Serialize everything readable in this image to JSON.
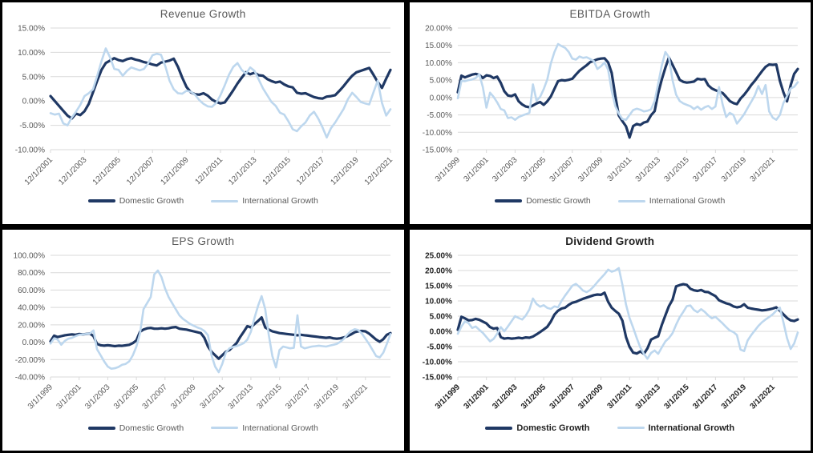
{
  "page": {
    "background_color": "#000000",
    "panel_color": "#ffffff",
    "gridline_color": "#d9d9d9",
    "axis_label_color": "#595959",
    "emphasis_label_color": "#1f1f1f",
    "domestic_color": "#1f3864",
    "international_color": "#bdd7ee"
  },
  "chart_data": [
    {
      "type": "line",
      "key": "revenue-growth",
      "title": "Revenue Growth",
      "emphasis": false,
      "grid": true,
      "legend_position": "bottom",
      "ylabel": "",
      "xlabel": "",
      "ylim": [
        -10,
        15
      ],
      "y_tick_values": [
        15,
        10,
        5,
        0,
        -5,
        -10
      ],
      "y_tick_format": "0.00%",
      "x_tick_labels": [
        "12/1/2001",
        "12/1/2003",
        "12/1/2005",
        "12/1/2007",
        "12/1/2009",
        "12/1/2011",
        "12/1/2013",
        "12/1/2015",
        "12/1/2017",
        "12/1/2019",
        "12/1/2021"
      ],
      "points_per_tick": 8,
      "series": [
        {
          "name": "Domestic Growth",
          "color": "#1f3864",
          "values": [
            1.0,
            0.0,
            -1.0,
            -2.0,
            -3.0,
            -3.6,
            -2.6,
            -2.9,
            -2.1,
            -0.6,
            1.8,
            4.2,
            6.4,
            7.8,
            8.3,
            8.8,
            8.4,
            8.2,
            8.6,
            8.8,
            8.5,
            8.3,
            8.0,
            7.8,
            7.5,
            7.3,
            7.9,
            8.1,
            8.3,
            8.7,
            7.0,
            4.8,
            2.9,
            1.8,
            1.4,
            1.3,
            1.6,
            1.1,
            0.3,
            -0.2,
            -0.5,
            -0.3,
            0.9,
            2.2,
            3.6,
            4.8,
            5.9,
            5.5,
            5.8,
            5.3,
            5.2,
            4.5,
            4.1,
            3.8,
            4.0,
            3.4,
            3.0,
            2.8,
            1.7,
            1.5,
            1.6,
            1.2,
            0.8,
            0.6,
            0.5,
            0.9,
            1.0,
            1.2,
            2.1,
            3.1,
            4.2,
            5.2,
            5.9,
            6.2,
            6.5,
            6.8,
            5.4,
            3.9,
            2.7,
            4.6,
            6.4
          ]
        },
        {
          "name": "International Growth",
          "color": "#bdd7ee",
          "values": [
            -2.5,
            -2.8,
            -2.6,
            -4.6,
            -5.0,
            -3.4,
            -2.2,
            -0.8,
            1.0,
            1.6,
            2.4,
            5.2,
            8.2,
            10.8,
            9.0,
            6.6,
            6.4,
            5.2,
            6.2,
            6.9,
            6.6,
            6.3,
            6.6,
            7.8,
            9.4,
            9.7,
            9.5,
            7.2,
            4.2,
            2.4,
            1.6,
            1.5,
            2.1,
            1.9,
            1.3,
            0.2,
            -0.6,
            -1.1,
            -1.2,
            -0.4,
            1.2,
            3.2,
            5.4,
            7.0,
            7.8,
            6.4,
            5.6,
            6.9,
            6.2,
            4.4,
            2.6,
            1.2,
            -0.2,
            -1.0,
            -2.4,
            -2.8,
            -4.2,
            -5.8,
            -6.2,
            -5.2,
            -4.4,
            -3.0,
            -2.2,
            -3.6,
            -5.4,
            -7.5,
            -5.6,
            -4.4,
            -3.0,
            -1.6,
            0.4,
            1.7,
            0.8,
            -0.2,
            -0.5,
            -0.7,
            1.8,
            4.2,
            -0.4,
            -3.0,
            -1.7
          ]
        }
      ]
    },
    {
      "type": "line",
      "key": "ebitda-growth",
      "title": "EBITDA Growth",
      "emphasis": false,
      "grid": true,
      "legend_position": "bottom",
      "ylabel": "",
      "xlabel": "",
      "ylim": [
        -15,
        20
      ],
      "y_tick_values": [
        20,
        15,
        10,
        5,
        0,
        -5,
        -10,
        -15
      ],
      "y_tick_format": "0.00%",
      "x_tick_labels": [
        "3/1/1999",
        "3/1/2001",
        "3/1/2003",
        "3/1/2005",
        "3/1/2007",
        "3/1/2009",
        "3/1/2011",
        "3/1/2013",
        "3/1/2015",
        "3/1/2017",
        "3/1/2019",
        "3/1/2021"
      ],
      "points_per_tick": 8,
      "series": [
        {
          "name": "Domestic Growth",
          "color": "#1f3864",
          "values": [
            1.5,
            6.3,
            5.8,
            6.2,
            6.6,
            6.8,
            6.5,
            5.6,
            6.4,
            6.2,
            5.6,
            6.0,
            4.2,
            1.8,
            0.6,
            0.4,
            0.9,
            -1.1,
            -2.0,
            -2.6,
            -2.8,
            -2.3,
            -1.7,
            -1.3,
            -2.1,
            -1.1,
            0.3,
            2.5,
            4.7,
            5.0,
            4.9,
            5.1,
            5.4,
            6.6,
            7.7,
            8.5,
            9.3,
            10.2,
            10.6,
            11.0,
            11.2,
            11.3,
            10.1,
            7.1,
            0.5,
            -5.2,
            -6.8,
            -8.3,
            -11.5,
            -8.2,
            -7.6,
            -7.9,
            -7.2,
            -6.9,
            -5.1,
            -3.9,
            1.2,
            5.2,
            8.6,
            11.5,
            9.4,
            7.3,
            5.1,
            4.5,
            4.3,
            4.4,
            4.6,
            5.4,
            5.2,
            5.3,
            3.5,
            2.6,
            2.1,
            1.7,
            1.3,
            0.2,
            -1.0,
            -1.6,
            -1.9,
            -0.3,
            0.8,
            2.1,
            3.6,
            4.8,
            6.2,
            7.6,
            8.8,
            9.5,
            9.4,
            9.5,
            4.8,
            1.5,
            -1.1,
            3.5,
            6.8,
            8.2
          ]
        },
        {
          "name": "International Growth",
          "color": "#bdd7ee",
          "values": [
            -0.2,
            4.8,
            4.7,
            5.0,
            5.2,
            5.6,
            6.7,
            3.0,
            -2.9,
            1.4,
            0.2,
            -1.4,
            -3.3,
            -3.7,
            -5.9,
            -5.7,
            -6.4,
            -5.6,
            -5.2,
            -4.8,
            -4.4,
            3.8,
            -0.9,
            0.2,
            2.4,
            5.2,
            9.8,
            13.1,
            15.4,
            14.8,
            14.3,
            13.1,
            11.2,
            10.9,
            11.8,
            11.4,
            11.6,
            11.1,
            10.5,
            8.2,
            9.0,
            10.1,
            8.0,
            2.0,
            -2.5,
            -4.6,
            -6.2,
            -6.4,
            -5.0,
            -3.6,
            -3.2,
            -3.5,
            -4.0,
            -3.8,
            -3.4,
            -1.0,
            4.0,
            9.2,
            13.1,
            11.6,
            5.0,
            0.8,
            -1.0,
            -1.7,
            -2.1,
            -2.5,
            -3.3,
            -2.6,
            -3.5,
            -2.8,
            -2.4,
            -3.3,
            -2.6,
            3.0,
            -2.0,
            -5.6,
            -4.4,
            -5.0,
            -7.5,
            -6.2,
            -4.8,
            -3.0,
            -1.2,
            0.6,
            3.3,
            1.0,
            3.6,
            -4.0,
            -5.8,
            -6.4,
            -5.0,
            -1.6,
            0.4,
            2.6,
            3.1,
            4.4
          ]
        }
      ]
    },
    {
      "type": "line",
      "key": "eps-growth",
      "title": "EPS Growth",
      "emphasis": false,
      "grid": true,
      "legend_position": "bottom",
      "ylabel": "",
      "xlabel": "",
      "ylim": [
        -40,
        100
      ],
      "y_tick_values": [
        100,
        80,
        60,
        40,
        20,
        0,
        -20,
        -40
      ],
      "y_tick_format": "0.00%",
      "x_tick_labels": [
        "3/1/1999",
        "3/1/2001",
        "3/1/2003",
        "3/1/2005",
        "3/1/2007",
        "3/1/2009",
        "3/1/2011",
        "3/1/2013",
        "3/1/2015",
        "3/1/2017",
        "3/1/2019",
        "3/1/2021"
      ],
      "points_per_tick": 8,
      "series": [
        {
          "name": "Domestic Growth",
          "color": "#1f3864",
          "values": [
            1.0,
            7.5,
            6.0,
            7.0,
            8.0,
            8.5,
            9.0,
            8.5,
            9.5,
            9.0,
            9.5,
            10.0,
            7.0,
            -2.0,
            -3.5,
            -4.0,
            -3.5,
            -4.0,
            -4.5,
            -4.0,
            -4.2,
            -3.6,
            -3.0,
            -1.0,
            2.0,
            12.0,
            14.5,
            16.0,
            16.5,
            15.5,
            15.5,
            16.0,
            15.5,
            16.0,
            17.0,
            17.5,
            15.5,
            15.0,
            14.5,
            13.5,
            12.5,
            11.5,
            10.5,
            5.0,
            -5.0,
            -11.0,
            -15.0,
            -19.0,
            -15.0,
            -11.0,
            -9.0,
            -5.0,
            -1.0,
            6.0,
            12.0,
            18.5,
            17.0,
            21.0,
            24.5,
            28.5,
            17.0,
            14.5,
            12.5,
            11.5,
            10.5,
            10.0,
            9.5,
            9.0,
            8.5,
            8.0,
            8.5,
            8.0,
            7.5,
            7.0,
            6.5,
            6.0,
            5.5,
            5.0,
            5.5,
            4.5,
            4.0,
            4.5,
            5.5,
            7.0,
            9.0,
            11.5,
            12.5,
            13.0,
            12.5,
            10.0,
            6.5,
            3.0,
            0.5,
            3.5,
            8.5,
            10.5
          ]
        },
        {
          "name": "International Growth",
          "color": "#bdd7ee",
          "values": [
            -1.5,
            4.5,
            3.0,
            -3.0,
            1.5,
            4.0,
            5.0,
            7.0,
            8.5,
            9.0,
            9.5,
            10.0,
            13.5,
            -8.0,
            -15.0,
            -22.0,
            -28.0,
            -30.5,
            -30.0,
            -28.5,
            -26.0,
            -25.0,
            -22.0,
            -15.0,
            -5.0,
            10.0,
            38.0,
            45.0,
            52.0,
            78.0,
            82.5,
            75.0,
            62.0,
            52.0,
            45.0,
            38.0,
            31.0,
            27.0,
            24.0,
            21.0,
            19.0,
            17.0,
            15.5,
            13.0,
            8.0,
            -15.0,
            -28.0,
            -34.5,
            -25.0,
            -12.0,
            -7.0,
            -5.5,
            -4.5,
            -3.0,
            -1.0,
            3.0,
            12.0,
            28.0,
            42.0,
            53.0,
            38.0,
            8.0,
            -16.0,
            -29.0,
            -9.0,
            -5.0,
            -6.0,
            -7.0,
            -6.5,
            31.0,
            -5.0,
            -7.0,
            -6.0,
            -5.0,
            -4.5,
            -4.0,
            -4.5,
            -5.0,
            -4.0,
            -3.0,
            -2.0,
            0.5,
            4.0,
            9.0,
            13.0,
            15.0,
            14.0,
            10.0,
            4.0,
            -2.0,
            -9.0,
            -16.0,
            -17.5,
            -12.0,
            -2.0,
            9.5
          ]
        }
      ]
    },
    {
      "type": "line",
      "key": "dividend-growth",
      "title": "Dividend Growth",
      "emphasis": true,
      "grid": true,
      "legend_position": "bottom",
      "ylabel": "",
      "xlabel": "",
      "ylim": [
        -15,
        25
      ],
      "y_tick_values": [
        25,
        20,
        15,
        10,
        5,
        0,
        -5,
        -10,
        -15
      ],
      "y_tick_format": "0.00%",
      "x_tick_labels": [
        "3/1/1999",
        "3/1/2001",
        "3/1/2003",
        "3/1/2005",
        "3/1/2007",
        "3/1/2009",
        "3/1/2011",
        "3/1/2013",
        "3/1/2015",
        "3/1/2017",
        "3/1/2019",
        "3/1/2021"
      ],
      "points_per_tick": 8,
      "series": [
        {
          "name": "Domestic Growth",
          "color": "#1f3864",
          "values": [
            0.5,
            4.8,
            4.3,
            3.6,
            3.7,
            4.1,
            3.8,
            3.2,
            2.6,
            1.4,
            0.9,
            1.1,
            -1.9,
            -2.4,
            -2.2,
            -2.4,
            -2.3,
            -2.1,
            -2.3,
            -2.0,
            -2.1,
            -1.7,
            -1.0,
            -0.2,
            0.6,
            1.5,
            3.2,
            5.5,
            6.8,
            7.5,
            7.8,
            8.7,
            9.4,
            9.7,
            10.2,
            10.7,
            11.1,
            11.5,
            11.9,
            12.1,
            12.0,
            12.7,
            9.7,
            7.8,
            6.7,
            5.8,
            3.5,
            -1.9,
            -5.1,
            -7.0,
            -7.3,
            -6.6,
            -7.4,
            -5.6,
            -2.7,
            -2.1,
            -1.6,
            2.1,
            5.3,
            8.3,
            10.4,
            14.8,
            15.2,
            15.5,
            15.3,
            14.0,
            13.5,
            13.3,
            13.6,
            13.0,
            12.9,
            12.2,
            11.6,
            10.2,
            9.7,
            9.2,
            8.9,
            8.2,
            7.9,
            8.1,
            8.9,
            7.8,
            7.5,
            7.3,
            7.1,
            6.9,
            7.0,
            7.2,
            7.5,
            7.9,
            6.8,
            5.6,
            4.4,
            3.6,
            3.4,
            3.9
          ]
        },
        {
          "name": "International Growth",
          "color": "#bdd7ee",
          "values": [
            -0.8,
            1.6,
            3.3,
            2.7,
            1.1,
            1.6,
            0.5,
            -0.5,
            -1.9,
            -3.3,
            -2.5,
            -0.8,
            1.4,
            0.0,
            1.6,
            3.3,
            5.0,
            4.4,
            3.9,
            5.2,
            7.2,
            10.8,
            9.0,
            8.1,
            8.6,
            7.7,
            7.4,
            8.2,
            7.9,
            10.0,
            11.8,
            13.4,
            15.0,
            15.6,
            14.6,
            13.4,
            12.9,
            13.6,
            14.8,
            16.2,
            17.5,
            18.8,
            20.3,
            19.6,
            20.0,
            20.8,
            15.3,
            8.8,
            4.4,
            1.2,
            -2.2,
            -5.3,
            -7.4,
            -9.0,
            -7.1,
            -6.3,
            -7.4,
            -5.3,
            -3.3,
            -2.2,
            -0.6,
            2.2,
            4.6,
            6.4,
            8.3,
            8.5,
            7.0,
            6.3,
            7.3,
            6.4,
            5.2,
            4.3,
            4.8,
            3.7,
            2.6,
            1.4,
            0.3,
            -0.2,
            -1.2,
            -6.0,
            -6.5,
            -3.0,
            -1.2,
            0.3,
            1.8,
            3.0,
            3.9,
            4.7,
            5.6,
            6.8,
            7.8,
            3.0,
            -2.2,
            -5.8,
            -4.0,
            -0.4
          ]
        }
      ]
    }
  ]
}
